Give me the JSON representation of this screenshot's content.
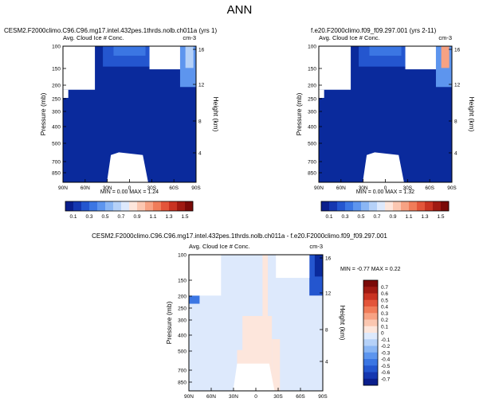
{
  "page_title": "ANN",
  "chart_data": [
    {
      "type": "heatmap",
      "id": "top-left",
      "title": "CESM2.F2000climo.C96.C96.mg17.intel.432pes.1thrds.nolb.ch011a (yrs 1)",
      "subtitle_left": "Avg. Cloud Ice # Conc.",
      "subtitle_right": "cm-3",
      "ylabel": "Pressure (mb)",
      "ylabel_right": "Height (km)",
      "x_ticks": [
        "90N",
        "60N",
        "30N",
        "0",
        "30S",
        "60S",
        "90S"
      ],
      "y_ticks": [
        100,
        150,
        200,
        250,
        300,
        400,
        500,
        700,
        850
      ],
      "y_right_ticks": [
        16,
        12,
        8,
        4
      ],
      "min_label": "MIN =",
      "min": "0.00",
      "max_label": "MAX =",
      "max": "1.24"
    },
    {
      "type": "heatmap",
      "id": "top-right",
      "title": "f.e20.F2000climo.f09_f09.297.001 (yrs 2-11)",
      "subtitle_left": "Avg. Cloud Ice # Conc.",
      "subtitle_right": "cm-3",
      "ylabel": "Pressure (mb)",
      "ylabel_right": "Height (km)",
      "x_ticks": [
        "90N",
        "60N",
        "30N",
        "0",
        "30S",
        "60S",
        "90S"
      ],
      "y_ticks": [
        100,
        150,
        200,
        250,
        300,
        400,
        500,
        700,
        850
      ],
      "y_right_ticks": [
        16,
        12,
        8,
        4
      ],
      "min_label": "MIN =",
      "min": "0.00",
      "max_label": "MAX =",
      "max": "1.32"
    },
    {
      "type": "heatmap",
      "id": "bottom-diff",
      "title": "CESM2.F2000climo.C96.C96.mg17.intel.432pes.1thrds.nolb.ch011a - f.e20.F2000climo.f09_f09.297.001",
      "subtitle_left": "Avg. Cloud Ice # Conc.",
      "subtitle_right": "cm-3",
      "ylabel": "Pressure (mb)",
      "ylabel_right": "Height (km)",
      "x_ticks": [
        "90N",
        "60N",
        "30N",
        "0",
        "30S",
        "60S",
        "90S"
      ],
      "y_ticks": [
        100,
        150,
        200,
        250,
        300,
        400,
        500,
        700,
        850
      ],
      "y_right_ticks": [
        16,
        12,
        8,
        4
      ],
      "min_label": "MIN =",
      "min": "-0.77",
      "max_label": "MAX =",
      "max": "0.22"
    }
  ],
  "colorbar_top": {
    "labels": [
      "0.1",
      "0.3",
      "0.5",
      "0.7",
      "0.9",
      "1.1",
      "1.3",
      "1.5"
    ],
    "colors": [
      "#0a1e8c",
      "#1537b0",
      "#2456cf",
      "#3b76e3",
      "#5d95ee",
      "#8ab6f4",
      "#b5d1f8",
      "#dde9fc",
      "#fde6dc",
      "#fbc7b1",
      "#f7a283",
      "#f07c59",
      "#e3553a",
      "#c93322",
      "#a01a12",
      "#7a0a08"
    ]
  },
  "colorbar_diff": {
    "labels": [
      "0.7",
      "0.6",
      "0.5",
      "0.4",
      "0.3",
      "0.2",
      "0.1",
      "0",
      "-0.1",
      "-0.2",
      "-0.3",
      "-0.4",
      "-0.5",
      "-0.6",
      "-0.7"
    ],
    "colors": [
      "#7a0a08",
      "#a01a12",
      "#c93322",
      "#e3553a",
      "#f07c59",
      "#f7a283",
      "#fbc7b1",
      "#fde6dc",
      "#dde9fc",
      "#b5d1f8",
      "#8ab6f4",
      "#5d95ee",
      "#3b76e3",
      "#2456cf",
      "#1537b0",
      "#0a1e8c"
    ]
  }
}
